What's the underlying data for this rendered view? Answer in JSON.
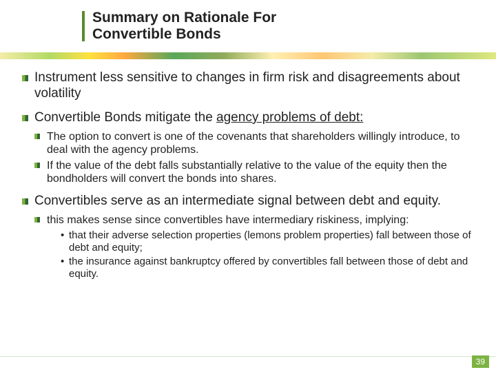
{
  "title_line1": "Summary on Rationale For",
  "title_line2": "Convertible Bonds",
  "points": {
    "p1": "Instrument less sensitive to changes in firm risk and disagreements about volatility",
    "p2_pre": "Convertible Bonds mitigate the ",
    "p2_ul": "agency problems of debt:",
    "p2_sub1": "The option to convert is one of the covenants that shareholders willingly introduce, to deal with the agency problems.",
    "p2_sub2": "If the value of the debt falls substantially relative to the value of the equity then the bondholders will convert the bonds into shares.",
    "p3": "Convertibles serve as an intermediate signal between debt and equity.",
    "p3_sub1": "this makes sense since convertibles have intermediary riskiness, implying:",
    "p3_sub1_a": "that their adverse selection properties (lemons problem properties) fall between those of debt and equity;",
    "p3_sub1_b": "the insurance against bankruptcy offered by convertibles fall between those of debt and equity."
  },
  "page_number": "39",
  "colors": {
    "accent_green": "#7cb342",
    "dark_green": "#336633",
    "text": "#222222"
  }
}
